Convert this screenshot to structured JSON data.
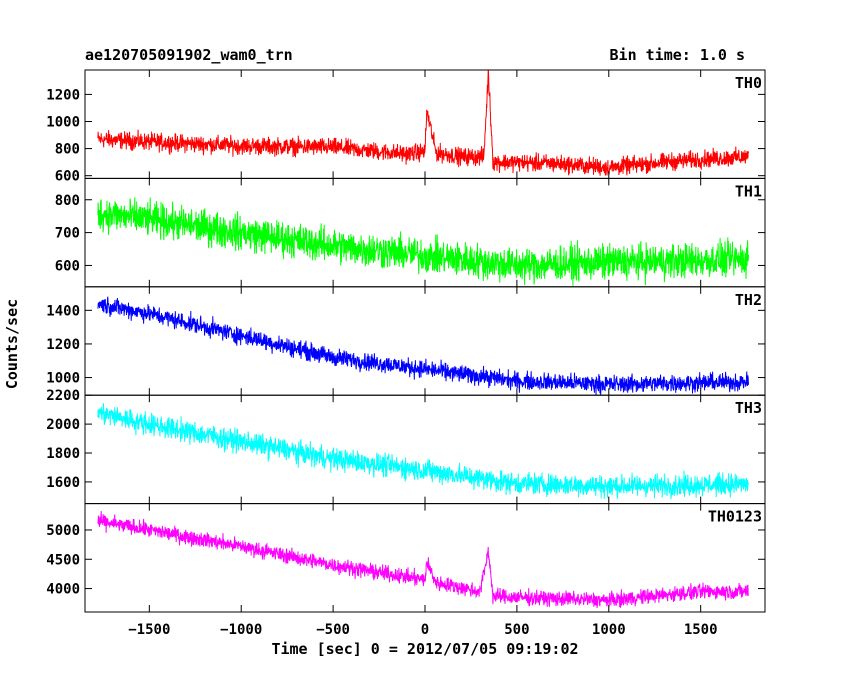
{
  "chart_data": {
    "type": "line",
    "title": "ae120705091902_wam0_trn",
    "subtitle": "Bin time: 1.0 s",
    "xlabel": "Time [sec] 0 = 2012/07/05 09:19:02",
    "ylabel": "Counts/sec",
    "xlim": [
      -1850,
      1850
    ],
    "xticks": [
      -1500,
      -1000,
      -500,
      0,
      500,
      1000,
      1500
    ],
    "xtick_labels": [
      "−1500",
      "−1000",
      "−500",
      "0",
      "500",
      "1000",
      "1500"
    ],
    "panels": [
      {
        "name": "TH0",
        "color": "#ff0000",
        "ylim": [
          580,
          1380
        ],
        "yticks": [
          600,
          800,
          1000,
          1200
        ],
        "x": [
          -1780,
          -1500,
          -1000,
          -500,
          -100,
          0,
          10,
          60,
          200,
          320,
          345,
          370,
          450,
          700,
          1000,
          1300,
          1500,
          1760
        ],
        "y": [
          870,
          850,
          820,
          810,
          760,
          780,
          1080,
          770,
          740,
          740,
          1360,
          700,
          700,
          690,
          660,
          700,
          720,
          740
        ],
        "noise": 55
      },
      {
        "name": "TH1",
        "color": "#00ff00",
        "ylim": [
          535,
          865
        ],
        "yticks": [
          600,
          700,
          800
        ],
        "x": [
          -1780,
          -1500,
          -1000,
          -500,
          0,
          500,
          1000,
          1500,
          1760
        ],
        "y": [
          760,
          740,
          700,
          660,
          630,
          600,
          610,
          615,
          620
        ],
        "noise": 45
      },
      {
        "name": "TH2",
        "color": "#0000ff",
        "ylim": [
          895,
          1540
        ],
        "yticks": [
          1000,
          1200,
          1400
        ],
        "x": [
          -1780,
          -1500,
          -1000,
          -500,
          0,
          500,
          1000,
          1500,
          1760
        ],
        "y": [
          1440,
          1380,
          1250,
          1120,
          1050,
          980,
          960,
          970,
          975
        ],
        "noise": 45
      },
      {
        "name": "TH3",
        "color": "#00ffff",
        "ylim": [
          1450,
          2200
        ],
        "yticks": [
          1600,
          1800,
          2000,
          2200
        ],
        "x": [
          -1780,
          -1500,
          -1000,
          -500,
          0,
          500,
          1000,
          1500,
          1760
        ],
        "y": [
          2080,
          2000,
          1880,
          1760,
          1680,
          1590,
          1570,
          1580,
          1585
        ],
        "noise": 65
      },
      {
        "name": "TH0123",
        "color": "#ff00ff",
        "ylim": [
          3600,
          5450
        ],
        "yticks": [
          4000,
          4500,
          5000
        ],
        "x": [
          -1780,
          -1500,
          -1000,
          -500,
          0,
          10,
          60,
          300,
          345,
          370,
          500,
          1000,
          1500,
          1760
        ],
        "y": [
          5150,
          5000,
          4720,
          4400,
          4150,
          4450,
          4100,
          3950,
          4650,
          3870,
          3850,
          3800,
          3950,
          3950
        ],
        "noise": 110
      }
    ]
  }
}
